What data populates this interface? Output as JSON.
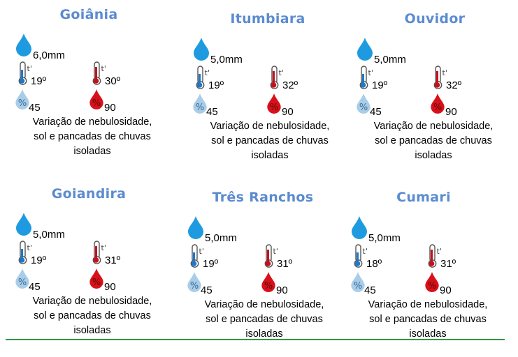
{
  "colors": {
    "title": "#5b8bd0",
    "rain_drop": "#1e9be0",
    "humidity_low_drop": "#a9cde8",
    "humidity_high_drop": "#d8101a",
    "thermo_cold": "#1f78c8",
    "thermo_hot": "#c8101a",
    "divider": "#2e9a3f"
  },
  "icons": {
    "rain": "rain-drop-icon",
    "temp_min": "thermometer-cold-icon",
    "temp_max": "thermometer-hot-icon",
    "humidity_min": "humidity-drop-light-icon",
    "humidity_max": "humidity-drop-red-icon"
  },
  "cities": [
    {
      "name": "Goiânia",
      "rain": "6,0mm",
      "temp_min": "19º",
      "temp_max": "30º",
      "humidity_min": "45",
      "humidity_max": "90",
      "desc": [
        "Variação de nebulosidade,",
        "sol e pancadas de chuvas",
        "isoladas"
      ]
    },
    {
      "name": "Itumbiara",
      "rain": "5,0mm",
      "temp_min": "19º",
      "temp_max": "32º",
      "humidity_min": "45",
      "humidity_max": "90",
      "desc": [
        "Variação de nebulosidade,",
        "sol e pancadas de chuvas",
        "isoladas"
      ]
    },
    {
      "name": "Ouvidor",
      "rain": "5,0mm",
      "temp_min": "19º",
      "temp_max": "32º",
      "humidity_min": "45",
      "humidity_max": "90",
      "desc": [
        "Variação de nebulosidade,",
        "sol e pancadas de chuvas",
        "isoladas"
      ]
    },
    {
      "name": "Goiandira",
      "rain": "5,0mm",
      "temp_min": "19º",
      "temp_max": "31º",
      "humidity_min": "45",
      "humidity_max": "90",
      "desc": [
        "Variação de nebulosidade,",
        "sol e pancadas de chuvas",
        "isoladas"
      ]
    },
    {
      "name": "Três Ranchos",
      "rain": "5,0mm",
      "temp_min": "19º",
      "temp_max": "31º",
      "humidity_min": "45",
      "humidity_max": "90",
      "desc": [
        "Variação de nebulosidade,",
        "sol e pancadas de chuvas",
        "isoladas"
      ]
    },
    {
      "name": "Cumari",
      "rain": "5,0mm",
      "temp_min": "18º",
      "temp_max": "31º",
      "humidity_min": "45",
      "humidity_max": "90",
      "desc": [
        "Variação de nebulosidade,",
        "sol e pancadas de chuvas",
        "isoladas"
      ]
    }
  ]
}
